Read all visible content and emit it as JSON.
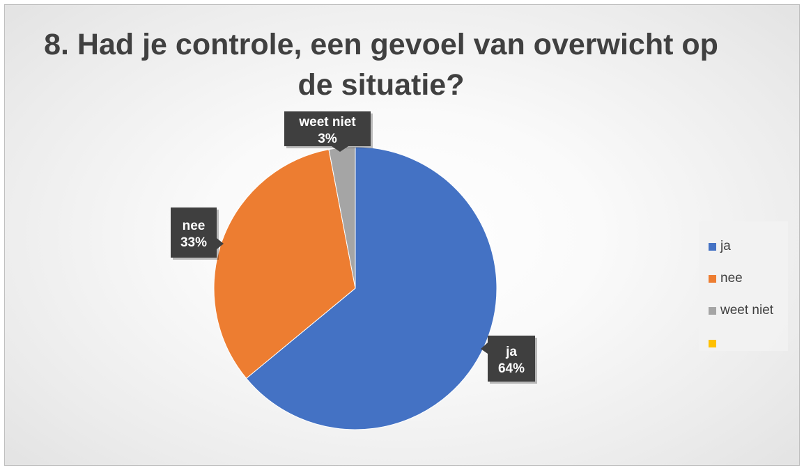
{
  "chart_data": {
    "type": "pie",
    "title": "8. Had je controle, een gevoel van overwicht op de situatie?",
    "categories": [
      "ja",
      "nee",
      "weet niet",
      ""
    ],
    "values": [
      64,
      33,
      3,
      0
    ],
    "value_labels": [
      "64%",
      "33%",
      "3%",
      ""
    ],
    "colors": [
      "#4472c4",
      "#ed7d31",
      "#a5a5a5",
      "#ffc000"
    ],
    "legend_position": "right",
    "data_label_style": "callout"
  }
}
